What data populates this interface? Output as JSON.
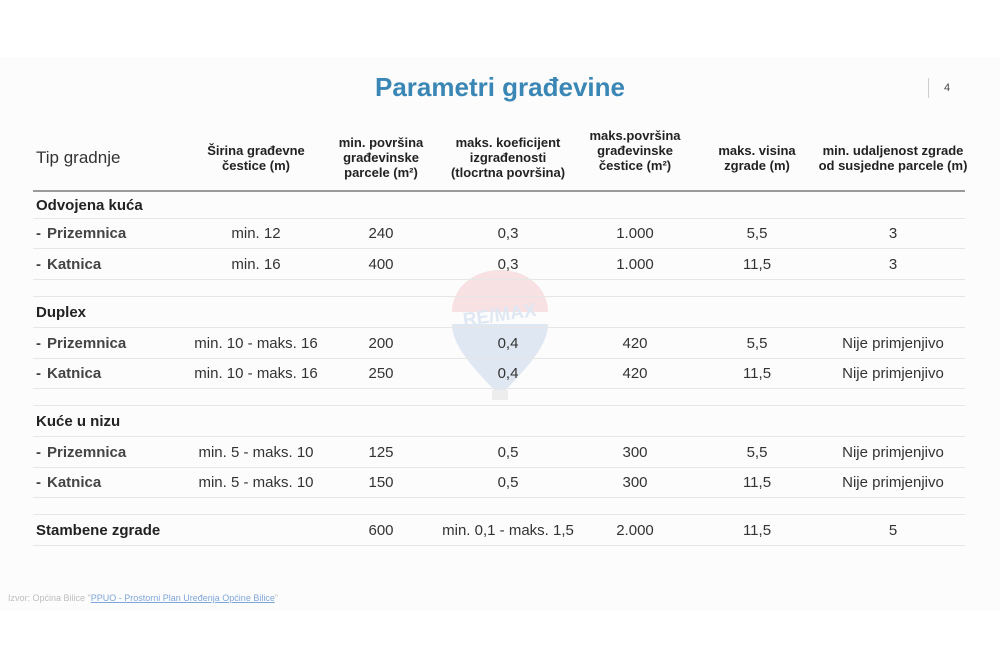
{
  "title": "Parametri građevine",
  "page_number": "4",
  "table": {
    "type_header": "Tip gradnje",
    "columns": [
      "Širina građevne čestice (m)",
      "min. površina građevinske parcele (m²)",
      "maks. koeficijent izgrađenosti (tlocrtna površina)",
      "maks.površina građevinske čestice (m²)",
      "maks. visina zgrade (m)",
      "min. udaljenost zgrade od susjedne parcele (m)"
    ],
    "groups": [
      {
        "label": "Odvojena kuća",
        "rows": [
          {
            "dash": "-",
            "label": "Prizemnica",
            "values": [
              "min. 12",
              "240",
              "0,3",
              "1.000",
              "5,5",
              "3"
            ]
          },
          {
            "dash": "-",
            "label": "Katnica",
            "values": [
              "min. 16",
              "400",
              "0,3",
              "1.000",
              "11,5",
              "3"
            ]
          }
        ]
      },
      {
        "label": "Duplex",
        "rows": [
          {
            "dash": "-",
            "label": "Prizemnica",
            "values": [
              "min. 10 - maks. 16",
              "200",
              "0,4",
              "420",
              "5,5",
              "Nije primjenjivo"
            ]
          },
          {
            "dash": "-",
            "label": "Katnica",
            "values": [
              "min. 10 - maks. 16",
              "250",
              "0,4",
              "420",
              "11,5",
              "Nije primjenjivo"
            ]
          }
        ]
      },
      {
        "label": "Kuće u nizu",
        "rows": [
          {
            "dash": "-",
            "label": "Prizemnica",
            "values": [
              "min. 5 - maks. 10",
              "125",
              "0,5",
              "300",
              "5,5",
              "Nije primjenjivo"
            ]
          },
          {
            "dash": "-",
            "label": "Katnica",
            "values": [
              "min. 5 - maks. 10",
              "150",
              "0,5",
              "300",
              "11,5",
              "Nije primjenjivo"
            ]
          }
        ]
      }
    ],
    "standalone": {
      "label": "Stambene zgrade",
      "values": [
        "",
        "600",
        "min. 0,1 - maks. 1,5",
        "2.000",
        "11,5",
        "5"
      ]
    }
  },
  "source": {
    "prefix": "Izvor: Općina Bilice",
    "open_quote": "\"",
    "link_text": "PPUO - Prostorni Plan Uređenja Općine Bilice",
    "close_quote": "\""
  },
  "watermark": {
    "text": "RE/MAX",
    "colors": {
      "red": "#d9262e",
      "blue": "#1a5aa8"
    }
  },
  "colors": {
    "title": "#3a86b5",
    "text": "#222222"
  }
}
